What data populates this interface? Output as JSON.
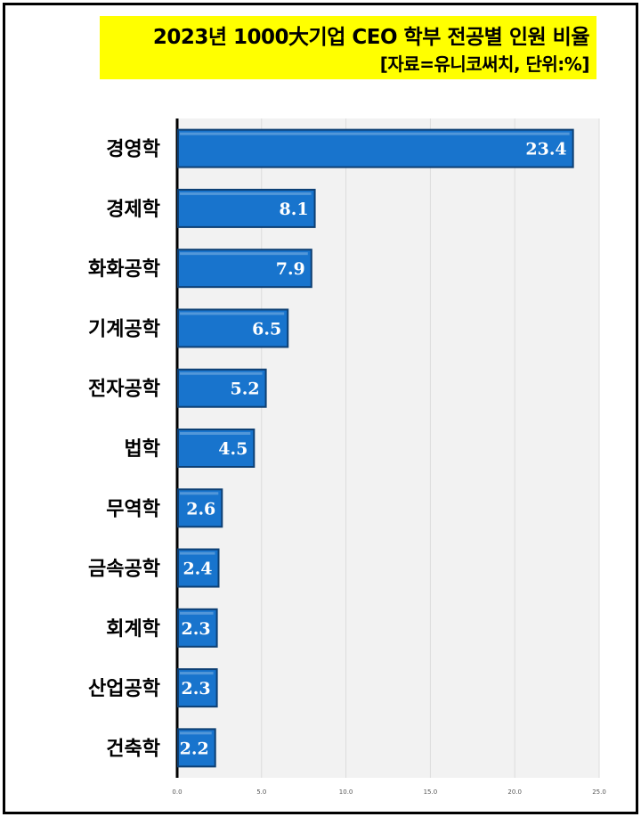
{
  "header": {
    "title": "2023년 1000大기업 CEO 학부 전공별 인원 비율",
    "subtitle": "[자료=유니코써치, 단위:%]"
  },
  "colors": {
    "bar": "#1874cd",
    "bar_edge": "#0d3f73",
    "highlight": "#ffff00",
    "plot_bg": "#f2f2f2"
  },
  "chart_data": {
    "type": "bar",
    "orientation": "horizontal",
    "categories": [
      "경영학",
      "경제학",
      "화화공학",
      "기계공학",
      "전자공학",
      "법학",
      "무역학",
      "금속공학",
      "회계학",
      "산업공학",
      "건축학"
    ],
    "values": [
      23.4,
      8.1,
      7.9,
      6.5,
      5.2,
      4.5,
      2.6,
      2.4,
      2.3,
      2.3,
      2.2
    ],
    "value_labels": [
      "23.4",
      "8.1",
      "7.9",
      "6.5",
      "5.2",
      "4.5",
      "2.6",
      "2.4",
      "2.3",
      "2.3",
      "2.2"
    ],
    "ticks": [
      0,
      5,
      10,
      15,
      20,
      25
    ],
    "tick_labels": [
      "0.0",
      "5.0",
      "10.0",
      "15.0",
      "20.0",
      "25.0"
    ],
    "xlim": [
      0,
      25
    ],
    "grid": true
  }
}
